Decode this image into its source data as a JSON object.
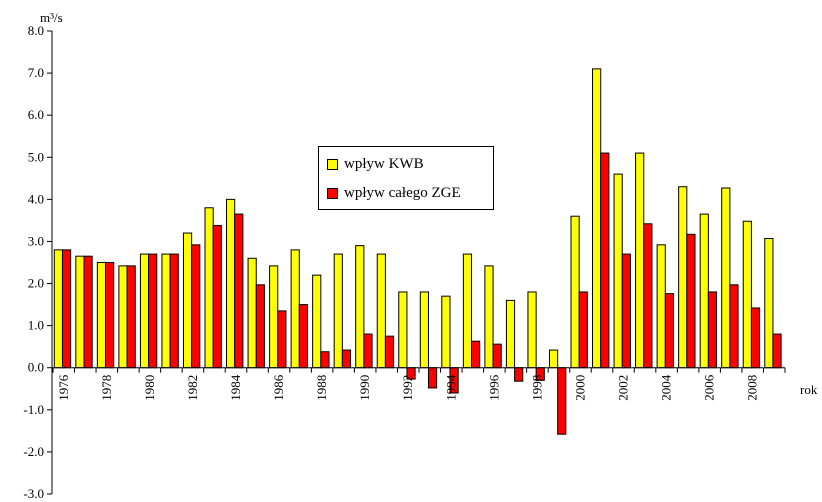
{
  "chart_data": {
    "type": "bar",
    "ylabel_unit": "m³/s",
    "xlabel": "rok",
    "ylim": [
      -3.0,
      8.0
    ],
    "yticks": [
      "8.0",
      "7.0",
      "6.0",
      "5.0",
      "4.0",
      "3.0",
      "2.0",
      "1.0",
      "0.0",
      "-1.0",
      "-2.0",
      "-3.0"
    ],
    "categories": [
      1976,
      1977,
      1978,
      1979,
      1980,
      1981,
      1982,
      1983,
      1984,
      1985,
      1986,
      1987,
      1988,
      1989,
      1990,
      1991,
      1992,
      1993,
      1994,
      1995,
      1996,
      1997,
      1998,
      1999,
      2000,
      2001,
      2002,
      2003,
      2004,
      2005,
      2006,
      2007,
      2008,
      2009
    ],
    "xtick_labels": [
      "1976",
      "1978",
      "1980",
      "1982",
      "1984",
      "1986",
      "1988",
      "1990",
      "1992",
      "1994",
      "1996",
      "1998",
      "2000",
      "2002",
      "2004",
      "2006",
      "2008"
    ],
    "series": [
      {
        "name": "wpływ KWB",
        "color": "#FFFF00",
        "values": [
          2.8,
          2.65,
          2.5,
          2.42,
          2.7,
          2.7,
          3.2,
          3.8,
          4.0,
          2.6,
          2.42,
          2.8,
          2.2,
          2.7,
          2.9,
          2.7,
          1.8,
          1.8,
          1.7,
          2.7,
          2.42,
          1.6,
          1.8,
          0.42,
          3.6,
          7.1,
          4.6,
          5.1,
          2.92,
          4.3,
          3.65,
          4.27,
          3.48,
          3.07
        ]
      },
      {
        "name": "wpływ całego ZGE",
        "color": "#FF0000",
        "values": [
          2.8,
          2.65,
          2.5,
          2.42,
          2.7,
          2.7,
          2.92,
          3.38,
          3.65,
          1.97,
          1.35,
          1.5,
          0.38,
          0.42,
          0.8,
          0.75,
          -0.27,
          -0.48,
          -0.6,
          0.63,
          0.56,
          -0.32,
          -0.3,
          -1.58,
          1.8,
          5.1,
          2.7,
          3.42,
          1.76,
          3.17,
          1.8,
          1.97,
          1.42,
          0.8
        ]
      }
    ],
    "legend": {
      "position": "center"
    },
    "grid": false
  }
}
